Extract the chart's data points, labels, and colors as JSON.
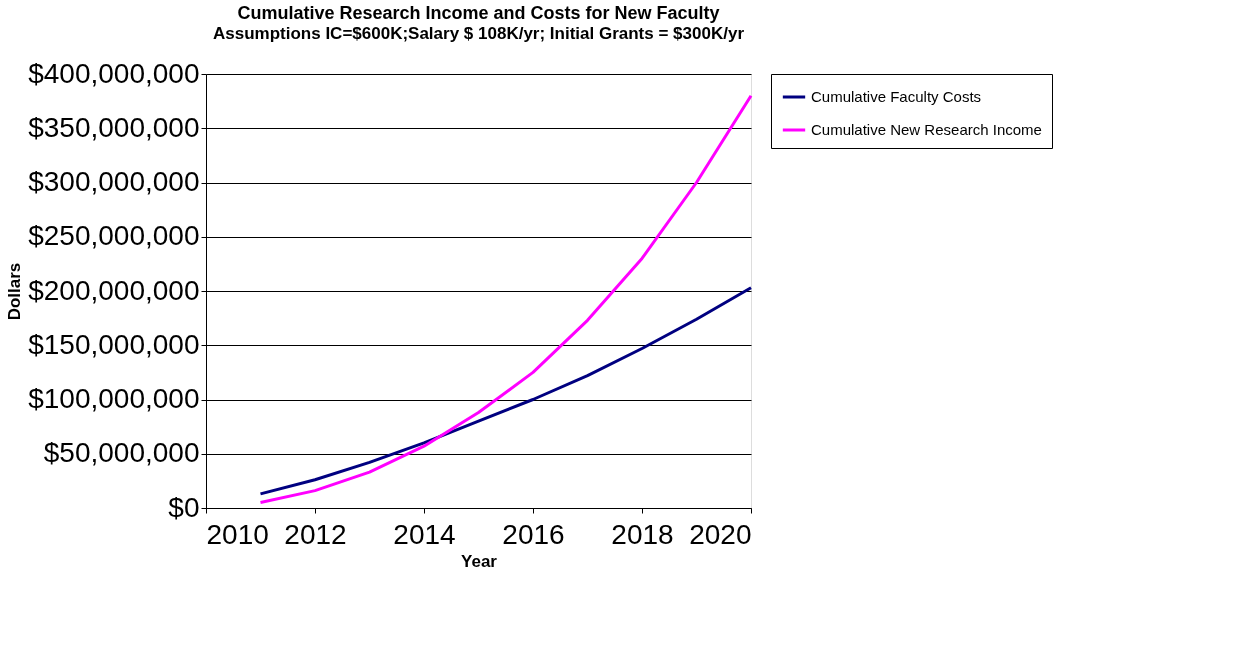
{
  "chart_data": {
    "type": "line",
    "title": "Cumulative Research Income and Costs for New Faculty",
    "subtitle": "Assumptions IC=$600K;Salary $ 108K/yr; Initial Grants = $300K/yr",
    "xlabel": "Year",
    "ylabel": "Dollars",
    "x": [
      2011,
      2012,
      2013,
      2014,
      2015,
      2016,
      2017,
      2018,
      2019,
      2020
    ],
    "series": [
      {
        "name": "Cumulative Faculty Costs",
        "color": "#000080",
        "values": [
          13000000,
          26000000,
          42000000,
          60000000,
          80000000,
          100000000,
          122000000,
          147000000,
          174000000,
          203000000
        ]
      },
      {
        "name": "Cumulative New Research Income",
        "color": "#ff00ff",
        "values": [
          5000000,
          16000000,
          33000000,
          57000000,
          88000000,
          125000000,
          173000000,
          230000000,
          300000000,
          380000000
        ]
      }
    ],
    "xlim": [
      2010,
      2020
    ],
    "xticks": [
      2010,
      2012,
      2014,
      2016,
      2018,
      2020
    ],
    "ylim": [
      0,
      400000000
    ],
    "yticks": [
      {
        "value": 0,
        "label": "$0"
      },
      {
        "value": 50000000,
        "label": "$50,000,000"
      },
      {
        "value": 100000000,
        "label": "$100,000,000"
      },
      {
        "value": 150000000,
        "label": "$150,000,000"
      },
      {
        "value": 200000000,
        "label": "$200,000,000"
      },
      {
        "value": 250000000,
        "label": "$250,000,000"
      },
      {
        "value": 300000000,
        "label": "$300,000,000"
      },
      {
        "value": 350000000,
        "label": "$350,000,000"
      },
      {
        "value": 400000000,
        "label": "$400,000,000"
      }
    ],
    "grid": "y",
    "legend": "right",
    "marker": "none",
    "line_style": "solid"
  }
}
